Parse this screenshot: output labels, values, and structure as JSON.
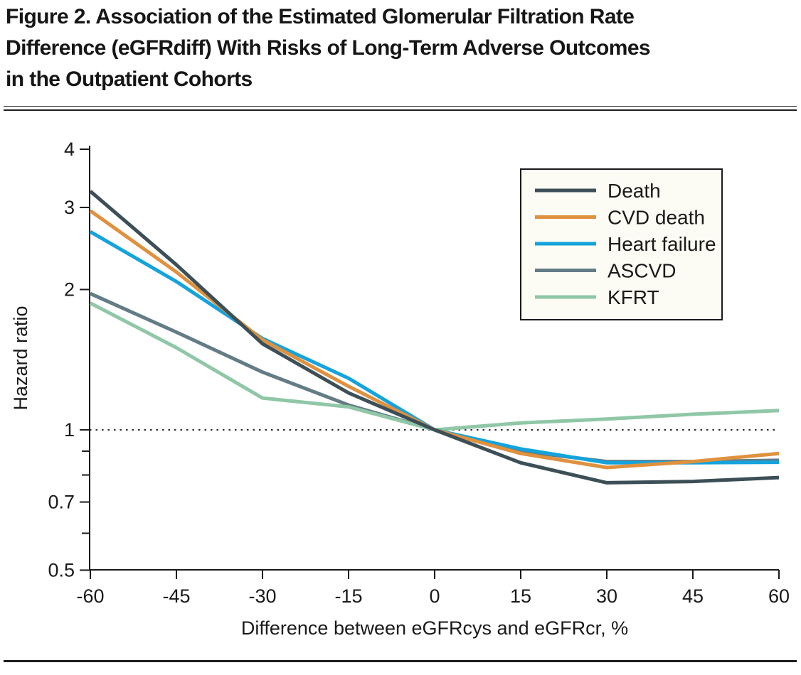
{
  "figure": {
    "title_line1": "Figure 2. Association of the Estimated Glomerular Filtration Rate",
    "title_line2": "Difference (eGFRdiff) With Risks of Long-Term Adverse Outcomes",
    "title_line3": "in the Outpatient Cohorts"
  },
  "chart_data": {
    "type": "line",
    "title": "Figure 2. Association of the Estimated Glomerular Filtration Rate Difference (eGFRdiff) With Risks of Long-Term Adverse Outcomes in the Outpatient Cohorts",
    "xlabel": "Difference between eGFRcys and eGFRcr, %",
    "ylabel": "Hazard ratio",
    "x": [
      -60,
      -45,
      -30,
      -15,
      0,
      15,
      30,
      45,
      60
    ],
    "series": [
      {
        "name": "Death",
        "color": "#3c4f57",
        "values": [
          3.25,
          2.26,
          1.53,
          1.2,
          1.0,
          0.85,
          0.77,
          0.775,
          0.79
        ]
      },
      {
        "name": "CVD death",
        "color": "#e0913e",
        "values": [
          2.95,
          2.18,
          1.56,
          1.24,
          1.0,
          0.89,
          0.83,
          0.855,
          0.89
        ]
      },
      {
        "name": "Heart failure",
        "color": "#14a3dc",
        "values": [
          2.66,
          2.08,
          1.57,
          1.29,
          1.0,
          0.91,
          0.85,
          0.85,
          0.852
        ]
      },
      {
        "name": "ASCVD",
        "color": "#637c85",
        "values": [
          1.96,
          1.62,
          1.33,
          1.13,
          1.0,
          0.9,
          0.855,
          0.855,
          0.86
        ]
      },
      {
        "name": "KFRT",
        "color": "#8fc7a7",
        "values": [
          1.87,
          1.5,
          1.17,
          1.12,
          1.0,
          1.035,
          1.055,
          1.08,
          1.1
        ]
      }
    ],
    "draw_order": [
      "ASCVD",
      "KFRT",
      "Heart failure",
      "CVD death",
      "Death"
    ],
    "y_scale": "log",
    "ylim": [
      0.5,
      4
    ],
    "xlim": [
      -60,
      60
    ],
    "y_ticks": [
      4,
      3,
      2,
      1,
      0.7,
      0.5
    ],
    "y_tick_labels": [
      "4",
      "3",
      "2",
      "1",
      "0.7",
      "0.5"
    ],
    "y_minor_ticks": [
      0.9,
      0.8,
      0.6
    ],
    "x_ticks": [
      -60,
      -45,
      -30,
      -15,
      0,
      15,
      30,
      45,
      60
    ],
    "x_tick_labels": [
      "-60",
      "-45",
      "-30",
      "-15",
      "0",
      "15",
      "30",
      "45",
      "60"
    ],
    "reference_line_y": 1,
    "grid": "off",
    "legend": {
      "position": "upper right",
      "entries": [
        "Death",
        "CVD death",
        "Heart failure",
        "ASCVD",
        "KFRT"
      ]
    }
  }
}
